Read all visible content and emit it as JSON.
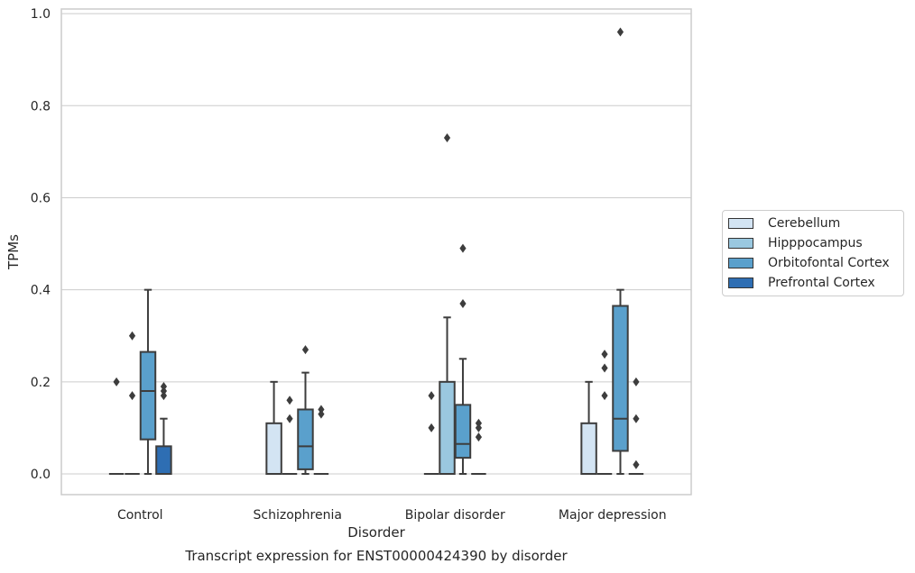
{
  "chart_data": {
    "type": "box",
    "xlabel": "Disorder",
    "ylabel": "TPMs",
    "ylim": [
      -0.045,
      1.01
    ],
    "yticks": [
      "0.0",
      "0.2",
      "0.4",
      "0.6",
      "0.8",
      "1.0"
    ],
    "ytick_values": [
      0.0,
      0.2,
      0.4,
      0.6,
      0.8,
      1.0
    ],
    "grid": true,
    "legend_position": "right",
    "categories": [
      "Control",
      "Schizophrenia",
      "Bipolar disorder",
      "Major depression"
    ],
    "series": [
      {
        "name": "Cerebellum",
        "color": "#d3e4f3",
        "boxes": [
          {
            "min": 0,
            "q1": 0,
            "median": 0,
            "q3": 0,
            "max": 0,
            "outliers": [
              0.2
            ]
          },
          {
            "min": 0,
            "q1": 0,
            "median": 0,
            "q3": 0.11,
            "max": 0.2,
            "outliers": []
          },
          {
            "min": 0,
            "q1": 0,
            "median": 0,
            "q3": 0,
            "max": 0,
            "outliers": [
              0.1,
              0.17
            ]
          },
          {
            "min": 0,
            "q1": 0,
            "median": 0,
            "q3": 0.11,
            "max": 0.2,
            "outliers": []
          }
        ]
      },
      {
        "name": "Hipppocampus",
        "color": "#9ac8e0",
        "boxes": [
          {
            "min": 0,
            "q1": 0,
            "median": 0,
            "q3": 0,
            "max": 0,
            "outliers": [
              0.17,
              0.3
            ]
          },
          {
            "min": 0,
            "q1": 0,
            "median": 0,
            "q3": 0,
            "max": 0,
            "outliers": [
              0.12,
              0.16
            ]
          },
          {
            "min": 0,
            "q1": 0,
            "median": 0,
            "q3": 0.2,
            "max": 0.34,
            "outliers": [
              0.73
            ]
          },
          {
            "min": 0,
            "q1": 0,
            "median": 0,
            "q3": 0,
            "max": 0,
            "outliers": [
              0.17,
              0.23,
              0.26
            ]
          }
        ]
      },
      {
        "name": "Orbitofontal Cortex",
        "color": "#5aa0cc",
        "boxes": [
          {
            "min": 0,
            "q1": 0.075,
            "median": 0.18,
            "q3": 0.265,
            "max": 0.4,
            "outliers": []
          },
          {
            "min": 0,
            "q1": 0.01,
            "median": 0.06,
            "q3": 0.14,
            "max": 0.22,
            "outliers": [
              0.27
            ]
          },
          {
            "min": 0,
            "q1": 0.035,
            "median": 0.065,
            "q3": 0.15,
            "max": 0.25,
            "outliers": [
              0.37,
              0.49
            ]
          },
          {
            "min": 0,
            "q1": 0.05,
            "median": 0.12,
            "q3": 0.365,
            "max": 0.4,
            "outliers": [
              0.96
            ]
          }
        ]
      },
      {
        "name": "Prefrontal Cortex",
        "color": "#2e6eb3",
        "boxes": [
          {
            "min": 0,
            "q1": 0,
            "median": 0,
            "q3": 0.06,
            "max": 0.12,
            "outliers": [
              0.17,
              0.18,
              0.19
            ]
          },
          {
            "min": 0,
            "q1": 0,
            "median": 0,
            "q3": 0,
            "max": 0,
            "outliers": [
              0.13,
              0.14
            ]
          },
          {
            "min": 0,
            "q1": 0,
            "median": 0,
            "q3": 0,
            "max": 0,
            "outliers": [
              0.08,
              0.1,
              0.11
            ]
          },
          {
            "min": 0,
            "q1": 0,
            "median": 0,
            "q3": 0,
            "max": 0,
            "outliers": [
              0.02,
              0.12,
              0.2
            ]
          }
        ]
      }
    ]
  },
  "caption": "Transcript expression for ENST00000424390 by disorder"
}
